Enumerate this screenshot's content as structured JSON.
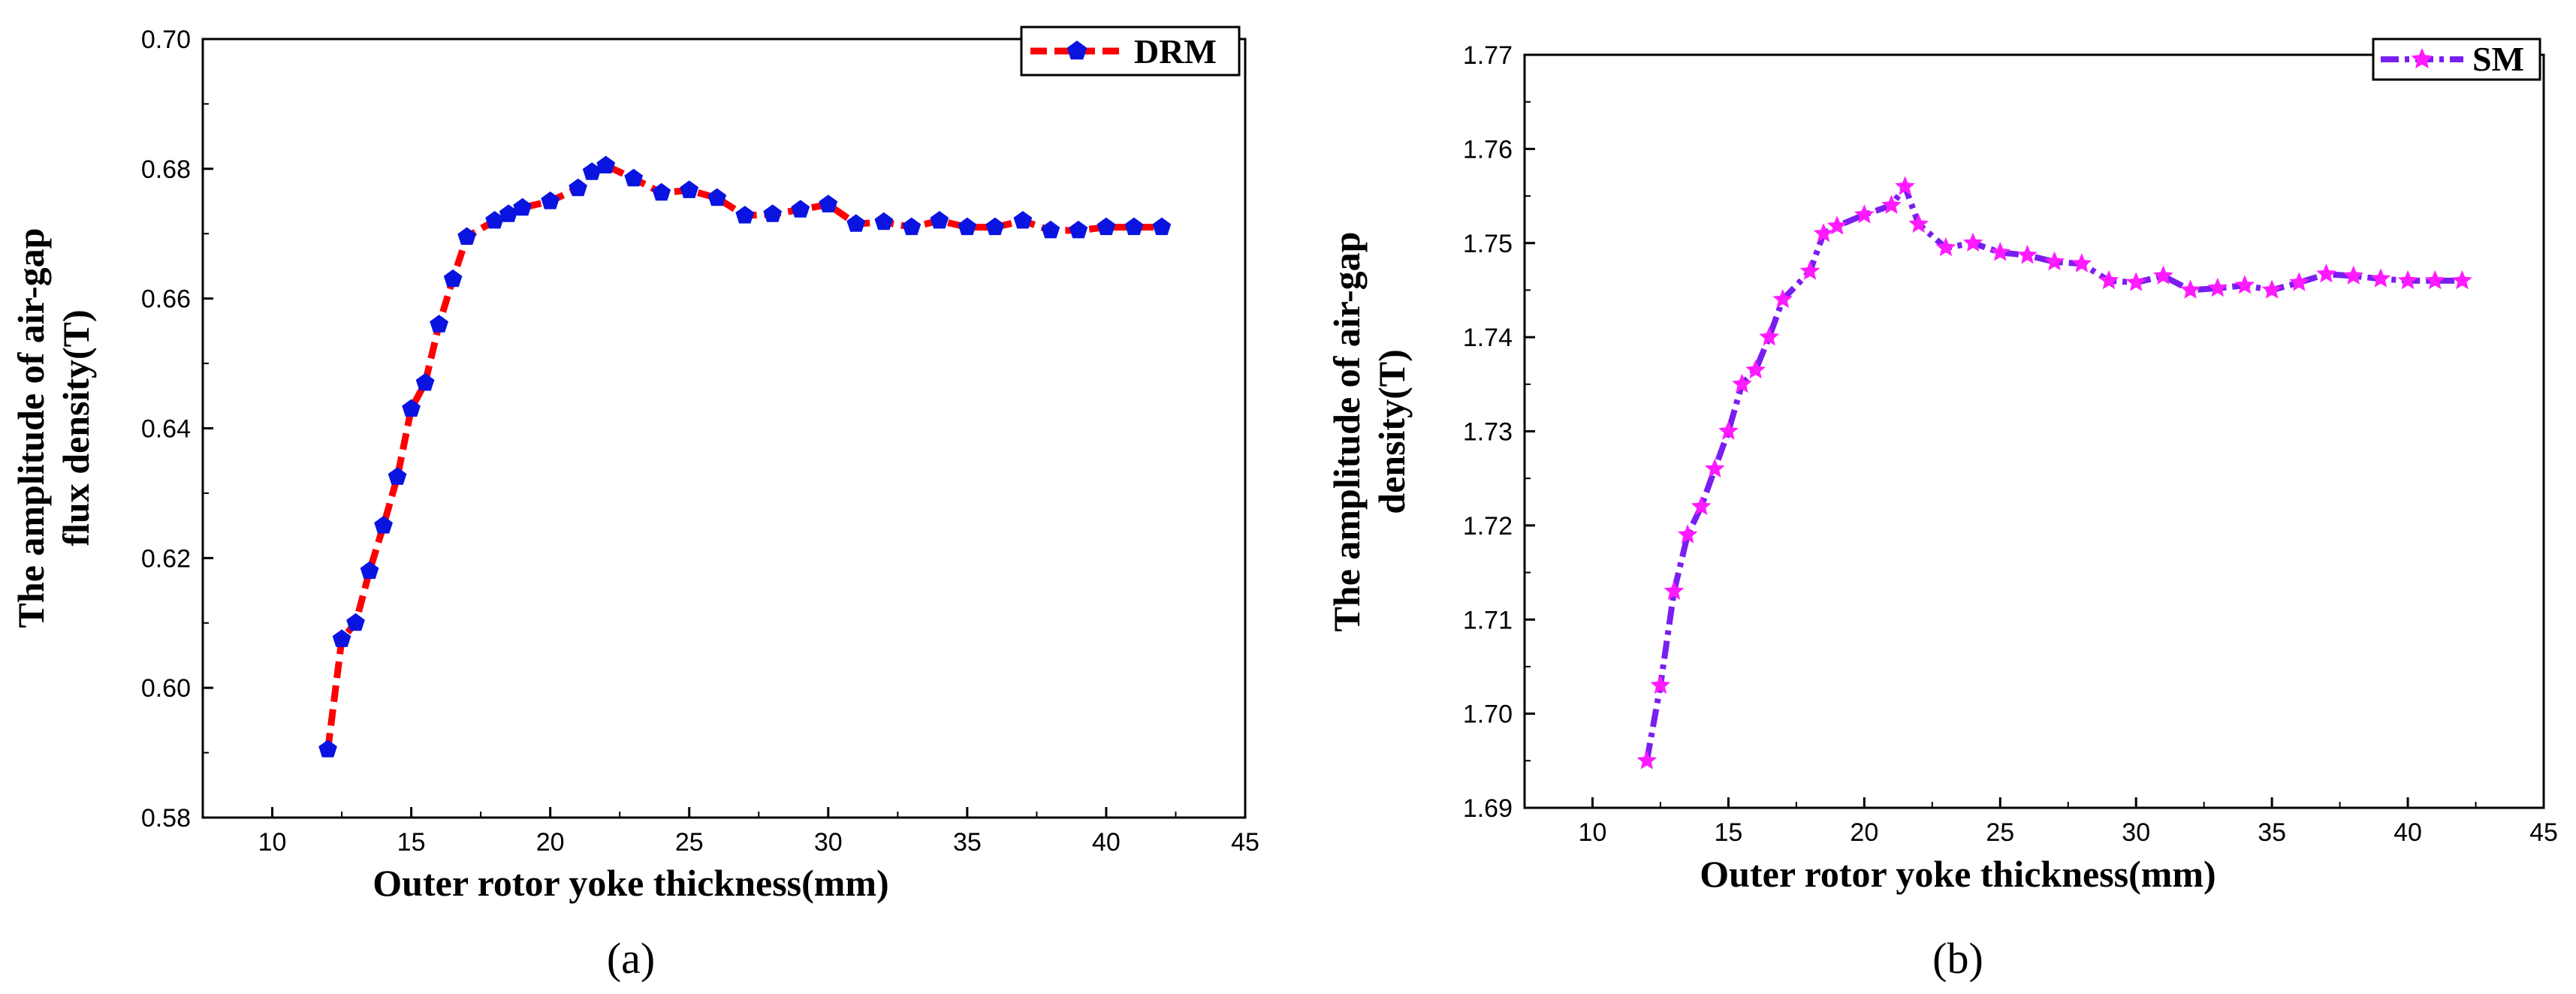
{
  "chart_data": [
    {
      "type": "line",
      "caption": "(a)",
      "xlabel": "Outer rotor yoke thickness(mm)",
      "ylabel_lines": [
        "The amplitude of air-gap",
        "flux density(T)"
      ],
      "xlim": [
        7.5,
        45
      ],
      "ylim": [
        0.58,
        0.7
      ],
      "xticks": [
        10,
        15,
        20,
        25,
        30,
        35,
        40,
        45
      ],
      "yticks": [
        0.58,
        0.6,
        0.62,
        0.64,
        0.66,
        0.68,
        0.7
      ],
      "ytick_labels": [
        "0.58",
        "0.60",
        "0.62",
        "0.64",
        "0.66",
        "0.68",
        "0.70"
      ],
      "legend_position": "top-right",
      "series": [
        {
          "name": "DRM",
          "line_color": "#ff0000",
          "marker_color": "#0a14e0",
          "marker": "pentagon",
          "line_style": "dash",
          "x": [
            12,
            12.5,
            13,
            13.5,
            14,
            14.5,
            15,
            15.5,
            16,
            16.5,
            17,
            18,
            18.5,
            19,
            20,
            21,
            21.5,
            22,
            23,
            24,
            25,
            26,
            27,
            28,
            29,
            30,
            31,
            32,
            33,
            34,
            35,
            36,
            37,
            38,
            39,
            40,
            41,
            42
          ],
          "y": [
            0.5905,
            0.6075,
            0.61,
            0.618,
            0.625,
            0.6325,
            0.643,
            0.647,
            0.656,
            0.663,
            0.6695,
            0.672,
            0.673,
            0.674,
            0.675,
            0.677,
            0.6795,
            0.6805,
            0.6785,
            0.6763,
            0.6767,
            0.6755,
            0.6728,
            0.673,
            0.6737,
            0.6745,
            0.6715,
            0.6718,
            0.671,
            0.672,
            0.671,
            0.671,
            0.672,
            0.6705,
            0.6705,
            0.671,
            0.671,
            0.671
          ]
        }
      ]
    },
    {
      "type": "line",
      "caption": "(b)",
      "xlabel": "Outer rotor yoke thickness(mm)",
      "ylabel_lines": [
        "The amplitude of air-gap",
        "density(T)"
      ],
      "xlim": [
        7.5,
        45
      ],
      "ylim": [
        1.69,
        1.77
      ],
      "xticks": [
        10,
        15,
        20,
        25,
        30,
        35,
        40,
        45
      ],
      "yticks": [
        1.69,
        1.7,
        1.71,
        1.72,
        1.73,
        1.74,
        1.75,
        1.76,
        1.77
      ],
      "ytick_labels": [
        "1.69",
        "1.70",
        "1.71",
        "1.72",
        "1.73",
        "1.74",
        "1.75",
        "1.76",
        "1.77"
      ],
      "legend_position": "top-right",
      "series": [
        {
          "name": "SM",
          "line_color": "#7a1ef0",
          "marker_color": "#ff1aff",
          "marker": "star",
          "line_style": "dashdot",
          "x": [
            12,
            12.5,
            13,
            13.5,
            14,
            14.5,
            15,
            15.5,
            16,
            16.5,
            17,
            18,
            18.5,
            19,
            20,
            21,
            21.5,
            22,
            23,
            24,
            25,
            26,
            27,
            28,
            29,
            30,
            31,
            32,
            33,
            34,
            35,
            36,
            37,
            38,
            39,
            40,
            41,
            42
          ],
          "y": [
            1.695,
            1.703,
            1.713,
            1.719,
            1.722,
            1.726,
            1.73,
            1.735,
            1.7365,
            1.74,
            1.744,
            1.747,
            1.751,
            1.7518,
            1.753,
            1.754,
            1.756,
            1.752,
            1.7495,
            1.75,
            1.749,
            1.7487,
            1.748,
            1.7478,
            1.746,
            1.7458,
            1.7465,
            1.745,
            1.7452,
            1.7455,
            1.745,
            1.7458,
            1.7467,
            1.7465,
            1.7462,
            1.746,
            1.746,
            1.746
          ]
        }
      ]
    }
  ]
}
